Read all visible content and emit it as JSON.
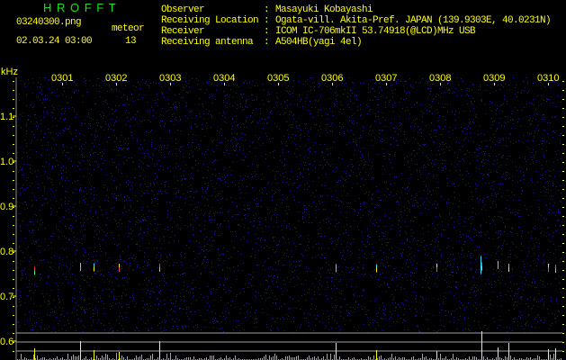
{
  "header": {
    "title": "H R O F F T",
    "filename": "03240300.png",
    "datetime": "02.03.24 03:00",
    "meteor_label": "meteor",
    "meteor_count": "13",
    "info": [
      {
        "label": "Observer",
        "sep": ":",
        "value": "Masayuki Kobayashi"
      },
      {
        "label": "Receiving Location",
        "sep": ":",
        "value": "Ogata-vill. Akita-Pref. JAPAN (139.9303E, 40.0231N)"
      },
      {
        "label": "Receiver",
        "sep": ":",
        "value": "ICOM IC-706mkII 53.74918(@LCD)MHz USB"
      },
      {
        "label": "Receiving antenna",
        "sep": ":",
        "value": "A504HB(yagi 4el)"
      }
    ]
  },
  "colors": {
    "text": "#ffff00",
    "title": "#22dd22",
    "noise": "#1a1a8a",
    "histogram": "#00e5ff",
    "spike": "#ffff00",
    "guide": "#a0a0a0"
  },
  "chart_data": {
    "type": "heatmap",
    "ylabel": "kHz",
    "ylim": [
      0.56,
      1.17
    ],
    "y_ticks": [
      "1.1",
      "1.0",
      "0.9",
      "0.8",
      "0.7",
      "0.6"
    ],
    "x_ticks": [
      "0301",
      "0302",
      "0303",
      "0304",
      "0305",
      "0306",
      "0307",
      "0308",
      "0309",
      "0310"
    ],
    "xlim": [
      "03:00",
      "03:10"
    ],
    "detections": [
      {
        "time": "03:00:30",
        "freq_khz": 0.755
      },
      {
        "time": "03:01:21",
        "freq_khz": 0.764
      },
      {
        "time": "03:01:36",
        "freq_khz": 0.763
      },
      {
        "time": "03:02:04",
        "freq_khz": 0.762
      },
      {
        "time": "03:02:49",
        "freq_khz": 0.762
      },
      {
        "time": "03:06:05",
        "freq_khz": 0.761
      },
      {
        "time": "03:06:50",
        "freq_khz": 0.761
      },
      {
        "time": "03:07:57",
        "freq_khz": 0.762
      },
      {
        "time": "03:08:47",
        "freq_khz": 0.765
      },
      {
        "time": "03:09:05",
        "freq_khz": 0.768
      },
      {
        "time": "03:09:17",
        "freq_khz": 0.762
      },
      {
        "time": "03:10:01",
        "freq_khz": 0.762
      },
      {
        "time": "03:10:09",
        "freq_khz": 0.76
      }
    ],
    "grid": false
  }
}
